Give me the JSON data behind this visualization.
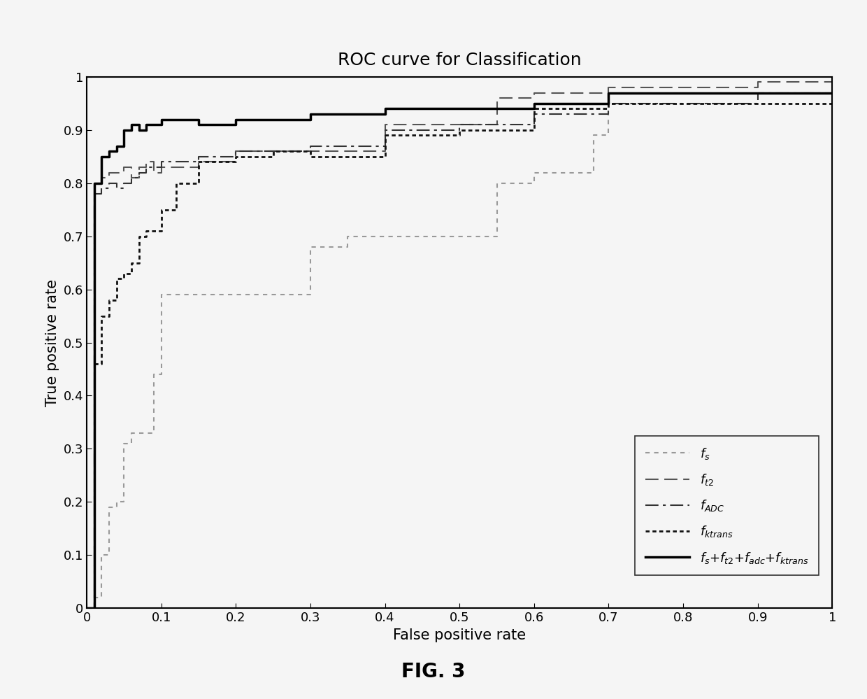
{
  "title": "ROC curve for Classification",
  "xlabel": "False positive rate",
  "ylabel": "True positive rate",
  "xlim": [
    0,
    1
  ],
  "ylim": [
    0,
    1
  ],
  "xticks": [
    0,
    0.1,
    0.2,
    0.3,
    0.4,
    0.5,
    0.6,
    0.7,
    0.8,
    0.9,
    1
  ],
  "yticks": [
    0,
    0.1,
    0.2,
    0.3,
    0.4,
    0.5,
    0.6,
    0.7,
    0.8,
    0.9,
    1
  ],
  "fig_caption": "FIG. 3",
  "fs_x": [
    0,
    0.01,
    0.01,
    0.02,
    0.02,
    0.03,
    0.03,
    0.04,
    0.04,
    0.05,
    0.05,
    0.06,
    0.06,
    0.09,
    0.09,
    0.1,
    0.1,
    0.3,
    0.3,
    0.35,
    0.35,
    0.55,
    0.55,
    0.6,
    0.6,
    0.68,
    0.68,
    0.7,
    0.7,
    1.0
  ],
  "fs_y": [
    0,
    0,
    0.02,
    0.02,
    0.1,
    0.1,
    0.19,
    0.19,
    0.2,
    0.2,
    0.31,
    0.31,
    0.33,
    0.33,
    0.44,
    0.44,
    0.59,
    0.59,
    0.68,
    0.68,
    0.7,
    0.7,
    0.8,
    0.8,
    0.82,
    0.82,
    0.89,
    0.89,
    0.97,
    0.97
  ],
  "ft2_x": [
    0,
    0.01,
    0.01,
    0.02,
    0.02,
    0.03,
    0.03,
    0.05,
    0.05,
    0.06,
    0.06,
    0.07,
    0.07,
    0.08,
    0.08,
    0.09,
    0.09,
    0.1,
    0.1,
    0.15,
    0.15,
    0.2,
    0.2,
    0.4,
    0.4,
    0.55,
    0.55,
    0.6,
    0.6,
    0.7,
    0.7,
    0.9,
    0.9,
    1.0
  ],
  "ft2_y": [
    0,
    0,
    0.8,
    0.8,
    0.81,
    0.81,
    0.82,
    0.82,
    0.83,
    0.83,
    0.81,
    0.81,
    0.83,
    0.83,
    0.84,
    0.84,
    0.82,
    0.82,
    0.83,
    0.83,
    0.84,
    0.84,
    0.86,
    0.86,
    0.91,
    0.91,
    0.96,
    0.96,
    0.97,
    0.97,
    0.98,
    0.98,
    0.99,
    0.99
  ],
  "fADC_x": [
    0,
    0.01,
    0.01,
    0.02,
    0.02,
    0.03,
    0.03,
    0.04,
    0.04,
    0.05,
    0.05,
    0.06,
    0.06,
    0.07,
    0.07,
    0.08,
    0.08,
    0.1,
    0.1,
    0.15,
    0.15,
    0.2,
    0.2,
    0.3,
    0.3,
    0.4,
    0.4,
    0.5,
    0.5,
    0.6,
    0.6,
    0.7,
    0.7,
    0.9,
    0.9,
    1.0
  ],
  "fADC_y": [
    0,
    0,
    0.78,
    0.78,
    0.79,
    0.79,
    0.8,
    0.8,
    0.79,
    0.79,
    0.8,
    0.8,
    0.81,
    0.81,
    0.82,
    0.82,
    0.83,
    0.83,
    0.84,
    0.84,
    0.85,
    0.85,
    0.86,
    0.86,
    0.87,
    0.87,
    0.9,
    0.9,
    0.91,
    0.91,
    0.93,
    0.93,
    0.95,
    0.95,
    0.97,
    0.97
  ],
  "fktrans_x": [
    0,
    0.01,
    0.01,
    0.02,
    0.02,
    0.03,
    0.03,
    0.04,
    0.04,
    0.05,
    0.05,
    0.06,
    0.06,
    0.07,
    0.07,
    0.08,
    0.08,
    0.1,
    0.1,
    0.12,
    0.12,
    0.15,
    0.15,
    0.2,
    0.2,
    0.25,
    0.25,
    0.3,
    0.3,
    0.4,
    0.4,
    0.5,
    0.5,
    0.6,
    0.6,
    0.7,
    0.7,
    1.0
  ],
  "fktrans_y": [
    0,
    0,
    0.46,
    0.46,
    0.55,
    0.55,
    0.58,
    0.58,
    0.62,
    0.62,
    0.63,
    0.63,
    0.65,
    0.65,
    0.7,
    0.7,
    0.71,
    0.71,
    0.75,
    0.75,
    0.8,
    0.8,
    0.84,
    0.84,
    0.85,
    0.85,
    0.86,
    0.86,
    0.85,
    0.85,
    0.89,
    0.89,
    0.9,
    0.9,
    0.94,
    0.94,
    0.95,
    0.95
  ],
  "fcomb_x": [
    0,
    0.01,
    0.01,
    0.02,
    0.02,
    0.03,
    0.03,
    0.04,
    0.04,
    0.05,
    0.05,
    0.06,
    0.06,
    0.07,
    0.07,
    0.08,
    0.08,
    0.1,
    0.1,
    0.15,
    0.15,
    0.2,
    0.2,
    0.3,
    0.3,
    0.4,
    0.4,
    0.6,
    0.6,
    0.7,
    0.7,
    1.0
  ],
  "fcomb_y": [
    0,
    0,
    0.8,
    0.8,
    0.85,
    0.85,
    0.86,
    0.86,
    0.87,
    0.87,
    0.9,
    0.9,
    0.91,
    0.91,
    0.9,
    0.9,
    0.91,
    0.91,
    0.92,
    0.92,
    0.91,
    0.91,
    0.92,
    0.92,
    0.93,
    0.93,
    0.94,
    0.94,
    0.95,
    0.95,
    0.97,
    0.97
  ],
  "fs_color": "#999999",
  "ft2_color": "#555555",
  "fADC_color": "#333333",
  "fktrans_color": "#111111",
  "fcomb_color": "#000000",
  "background_color": "#f5f5f5",
  "title_fontsize": 18,
  "label_fontsize": 15,
  "tick_fontsize": 13,
  "legend_fontsize": 13,
  "axis_linewidth": 1.5
}
